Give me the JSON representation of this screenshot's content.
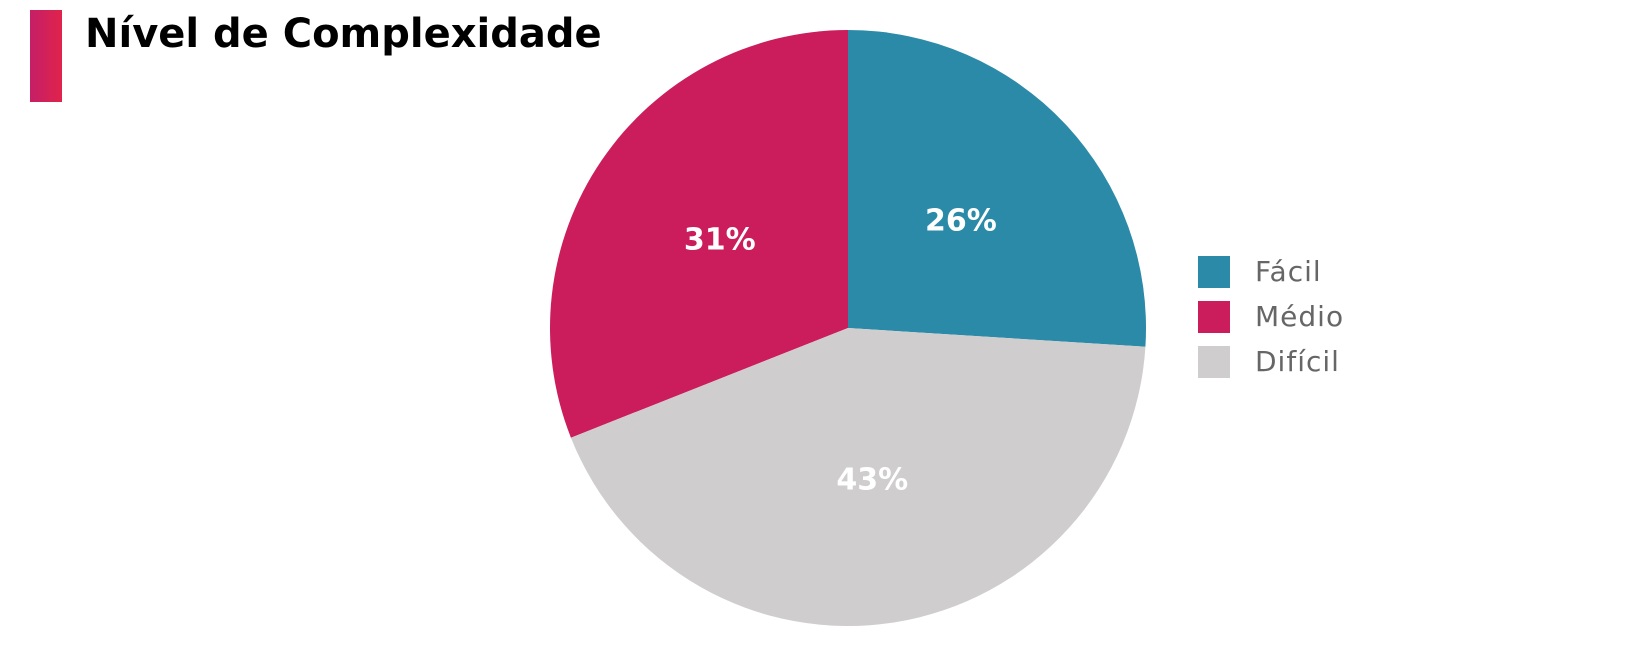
{
  "chart_data": {
    "type": "pie",
    "title": "Nível de Complexidade",
    "categories": [
      "Fácil",
      "Médio",
      "Difícil"
    ],
    "values": [
      26,
      31,
      43
    ],
    "value_labels": [
      "26%",
      "31%",
      "43%"
    ],
    "colors": [
      "#2a8aa8",
      "#cb1d5b",
      "#cfcdce"
    ],
    "legend": "right"
  }
}
